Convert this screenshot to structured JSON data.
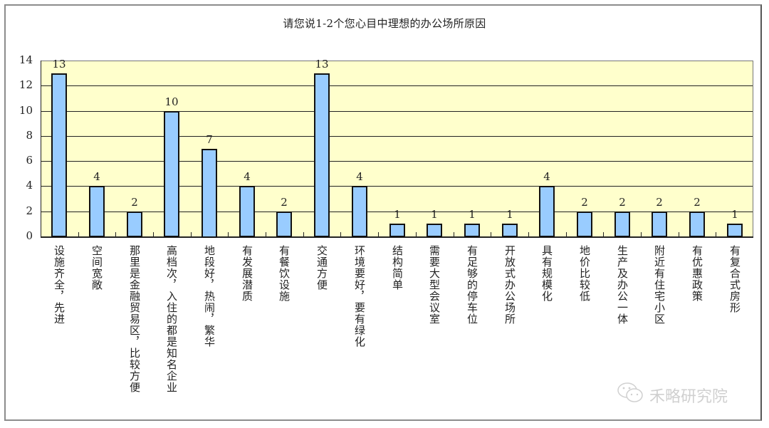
{
  "chart_data": {
    "type": "bar",
    "title": "请您说1-2个您心目中理想的办公场所原因",
    "xlabel": "",
    "ylabel": "",
    "ylim": [
      0,
      14
    ],
    "yticks": [
      "0",
      "2",
      "4",
      "6",
      "8",
      "10",
      "12",
      "14"
    ],
    "grid": true,
    "legend": null,
    "categories": [
      "设施齐全，先进",
      "空间宽敞",
      "那里是金融贸易区，比较方便",
      "高档次，入住的都是知名企业",
      "地段好，热闹，繁华",
      "有发展潜质",
      "有餐饮设施",
      "交通方便",
      "环境要好，要有绿化",
      "结构简单",
      "需要大型会议室",
      "有足够的停车位",
      "开放式办公场所",
      "具有规模化",
      "地价比较低",
      "生产及办公一体",
      "附近有住宅小区",
      "有优惠政策",
      "有复合式房形"
    ],
    "values": [
      13,
      4,
      2,
      10,
      7,
      4,
      2,
      13,
      4,
      1,
      1,
      1,
      1,
      4,
      2,
      2,
      2,
      2,
      1
    ],
    "data_labels": [
      "13",
      "4",
      "2",
      "10",
      "7",
      "4",
      "2",
      "13",
      "4",
      "1",
      "1",
      "1",
      "1",
      "4",
      "2",
      "2",
      "2",
      "2",
      "1"
    ],
    "colors": {
      "bar_fill": "#99ccff",
      "bar_border": "#111111",
      "plot_bg": "#ffffcc",
      "gridline": "#222222"
    }
  },
  "watermark": {
    "icon": "wechat-icon",
    "text": "禾略研究院"
  }
}
